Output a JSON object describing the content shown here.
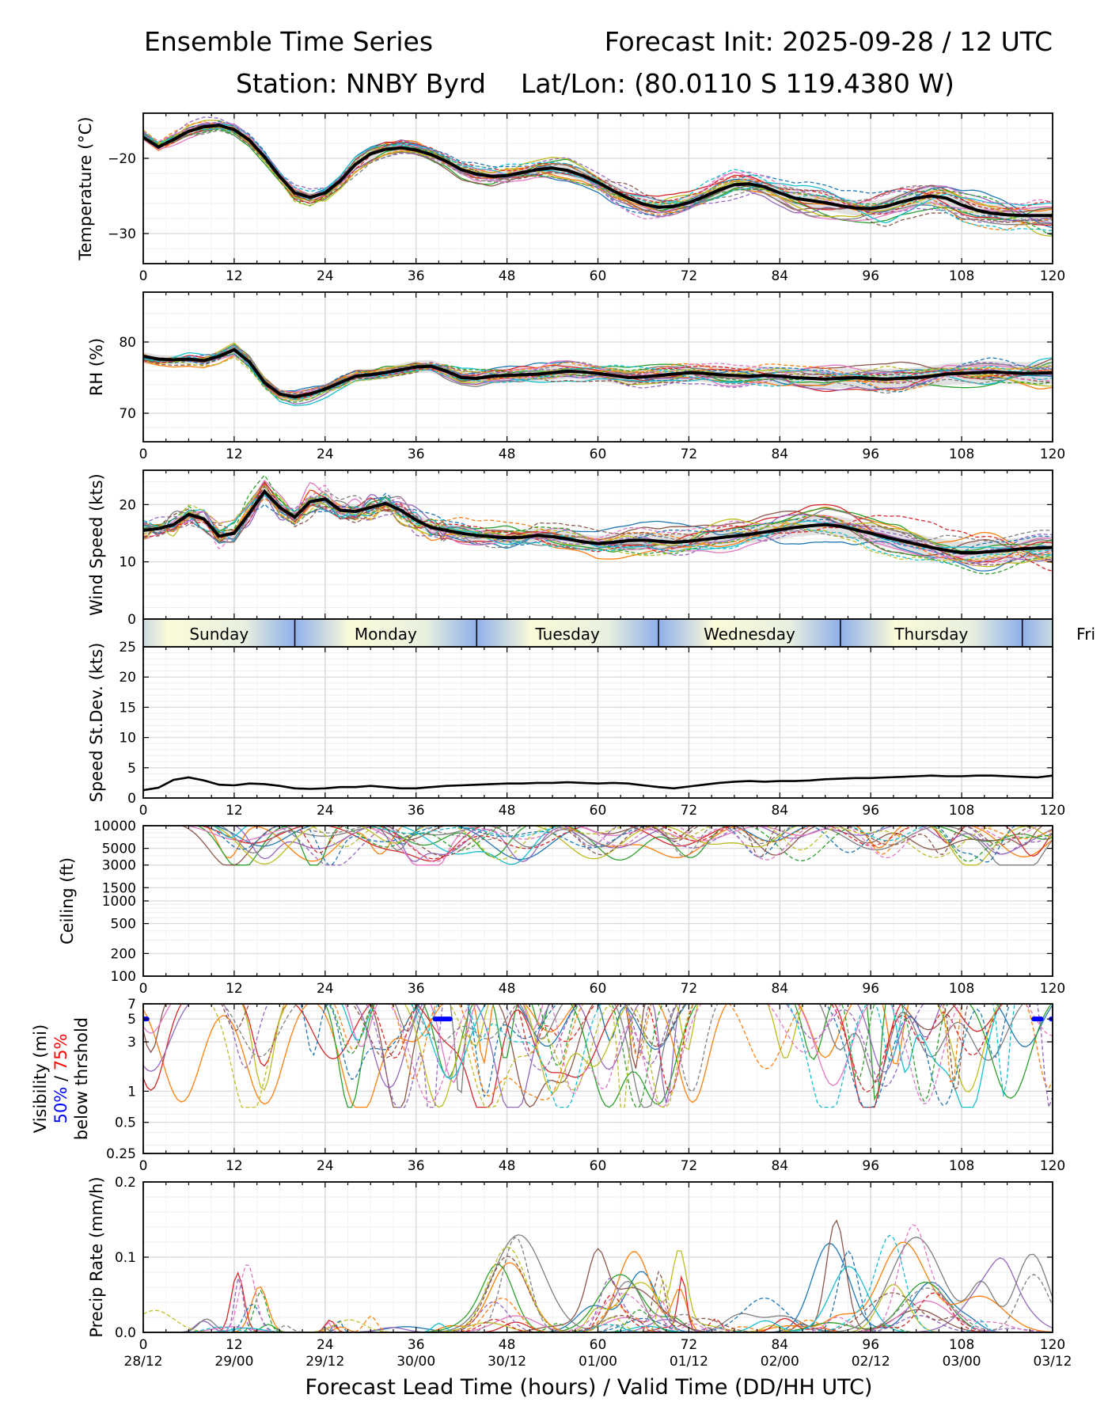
{
  "header": {
    "title_left": "Ensemble Time Series",
    "title_right": "Forecast Init: 2025-09-28 / 12 UTC",
    "station": "Station: NNBY Byrd",
    "latlon": "Lat/Lon: (80.0110 S 119.4380 W)"
  },
  "x_axis": {
    "label": "Forecast Lead Time (hours) / Valid Time (DD/HH UTC)",
    "lead_ticks": [
      "0",
      "12",
      "24",
      "36",
      "48",
      "60",
      "72",
      "84",
      "96",
      "108",
      "120"
    ],
    "valid_ticks": [
      "28/12",
      "29/00",
      "29/12",
      "30/00",
      "30/12",
      "01/00",
      "01/12",
      "02/00",
      "02/12",
      "03/00",
      "03/12"
    ]
  },
  "day_bar": {
    "days": [
      "Sunday",
      "Monday",
      "Tuesday",
      "Wednesday",
      "Thursday",
      "Fri"
    ],
    "day_starts": [
      -4,
      20,
      44,
      68,
      92,
      116
    ]
  },
  "chart_data": [
    {
      "id": "temperature",
      "type": "line",
      "ylabel": "Temperature (°C)",
      "ylim": [
        -34,
        -14
      ],
      "yticks": [
        -30,
        -20
      ],
      "ytick_labels": [
        "−30",
        "−20"
      ],
      "ensemble_mean": {
        "x": [
          0,
          2,
          4,
          6,
          8,
          10,
          12,
          14,
          16,
          18,
          20,
          22,
          24,
          26,
          28,
          30,
          32,
          34,
          36,
          38,
          40,
          42,
          44,
          46,
          48,
          50,
          52,
          54,
          56,
          58,
          60,
          62,
          64,
          66,
          68,
          70,
          72,
          74,
          76,
          78,
          80,
          82,
          84,
          86,
          88,
          90,
          92,
          94,
          96,
          98,
          100,
          102,
          104,
          106,
          108,
          110,
          112,
          114,
          116,
          118,
          120
        ],
        "y": [
          -17.2,
          -18.5,
          -17.5,
          -16.4,
          -15.8,
          -15.6,
          -16.2,
          -17.6,
          -19.8,
          -22.4,
          -24.6,
          -25.2,
          -24.6,
          -23.0,
          -20.8,
          -19.4,
          -18.8,
          -18.6,
          -18.9,
          -19.5,
          -20.4,
          -21.5,
          -22.1,
          -22.4,
          -22.3,
          -21.9,
          -21.5,
          -21.3,
          -21.6,
          -22.3,
          -23.2,
          -24.3,
          -25.3,
          -26.1,
          -26.5,
          -26.4,
          -25.9,
          -25.1,
          -24.2,
          -23.5,
          -23.4,
          -23.8,
          -24.6,
          -25.3,
          -25.6,
          -25.9,
          -26.3,
          -26.6,
          -26.7,
          -26.4,
          -25.8,
          -25.3,
          -25.0,
          -25.3,
          -26.2,
          -26.9,
          -27.3,
          -27.5,
          -27.6,
          -27.6,
          -27.6
        ]
      },
      "spread_halfwidth": 1.2,
      "members": 20
    },
    {
      "id": "rh",
      "type": "line",
      "ylabel": "RH (%)",
      "ylim": [
        66,
        87
      ],
      "yticks": [
        70,
        80
      ],
      "ytick_labels": [
        "70",
        "80"
      ],
      "ensemble_mean": {
        "x": [
          0,
          2,
          4,
          6,
          8,
          10,
          12,
          14,
          16,
          18,
          20,
          22,
          24,
          26,
          28,
          30,
          32,
          34,
          36,
          38,
          40,
          42,
          44,
          46,
          48,
          50,
          52,
          54,
          56,
          58,
          60,
          62,
          64,
          66,
          68,
          70,
          72,
          74,
          76,
          78,
          80,
          82,
          84,
          86,
          88,
          90,
          92,
          94,
          96,
          98,
          100,
          102,
          104,
          106,
          108,
          110,
          112,
          114,
          116,
          118,
          120
        ],
        "y": [
          78.0,
          77.6,
          77.5,
          77.6,
          77.4,
          78.0,
          78.9,
          77.2,
          74.3,
          72.7,
          72.3,
          72.7,
          73.4,
          74.3,
          75.2,
          75.4,
          75.7,
          76.1,
          76.5,
          76.6,
          75.9,
          75.0,
          74.9,
          75.2,
          75.3,
          75.4,
          75.5,
          75.7,
          75.9,
          75.8,
          75.6,
          75.3,
          75.0,
          75.1,
          75.3,
          75.5,
          75.7,
          75.6,
          75.4,
          75.3,
          75.2,
          75.3,
          75.2,
          75.0,
          74.9,
          74.8,
          74.9,
          75.0,
          74.9,
          74.8,
          74.9,
          75.0,
          75.2,
          75.5,
          75.6,
          75.7,
          75.8,
          75.7,
          75.6,
          75.6,
          75.7
        ]
      },
      "spread_halfwidth": 1.6,
      "members": 20
    },
    {
      "id": "wind_speed",
      "type": "line",
      "ylabel": "Wind Speed (kts)",
      "ylim": [
        0,
        26
      ],
      "yticks": [
        0,
        10,
        20
      ],
      "ytick_labels": [
        "0",
        "10",
        "20"
      ],
      "ensemble_mean": {
        "x": [
          0,
          2,
          4,
          6,
          8,
          10,
          12,
          14,
          16,
          18,
          20,
          22,
          24,
          26,
          28,
          30,
          32,
          34,
          36,
          38,
          40,
          42,
          44,
          46,
          48,
          50,
          52,
          54,
          56,
          58,
          60,
          62,
          64,
          66,
          68,
          70,
          72,
          74,
          76,
          78,
          80,
          82,
          84,
          86,
          88,
          90,
          92,
          94,
          96,
          98,
          100,
          102,
          104,
          106,
          108,
          110,
          112,
          114,
          116,
          118,
          120
        ],
        "y": [
          15.5,
          15.8,
          16.5,
          18.3,
          17.5,
          14.5,
          15.0,
          18.5,
          22.3,
          19.5,
          17.8,
          20.5,
          21.0,
          19.0,
          18.8,
          19.5,
          20.2,
          19.0,
          17.3,
          16.0,
          15.5,
          15.0,
          14.6,
          14.4,
          14.2,
          14.3,
          14.6,
          14.4,
          14.0,
          13.5,
          13.2,
          13.4,
          13.7,
          13.8,
          13.6,
          13.4,
          13.6,
          13.9,
          14.2,
          14.5,
          14.8,
          15.2,
          15.6,
          16.0,
          16.3,
          16.5,
          16.2,
          15.6,
          15.0,
          14.3,
          13.7,
          13.1,
          12.5,
          12.0,
          11.6,
          11.6,
          11.8,
          12.0,
          12.3,
          12.4,
          12.5
        ]
      },
      "spread_halfwidth": 2.0,
      "members": 20
    },
    {
      "id": "speed_stdev",
      "type": "line",
      "ylabel": "Speed St.Dev. (kts)",
      "ylim": [
        0,
        25
      ],
      "yticks": [
        0,
        5,
        10,
        15,
        20,
        25
      ],
      "ytick_labels": [
        "0",
        "5",
        "10",
        "15",
        "20",
        "25"
      ],
      "series": [
        {
          "name": "std",
          "x": [
            0,
            2,
            4,
            6,
            8,
            10,
            12,
            14,
            16,
            18,
            20,
            22,
            24,
            26,
            28,
            30,
            32,
            34,
            36,
            38,
            40,
            42,
            44,
            46,
            48,
            50,
            52,
            54,
            56,
            58,
            60,
            62,
            64,
            66,
            68,
            70,
            72,
            74,
            76,
            78,
            80,
            82,
            84,
            86,
            88,
            90,
            92,
            94,
            96,
            98,
            100,
            102,
            104,
            106,
            108,
            110,
            112,
            114,
            116,
            118,
            120
          ],
          "y": [
            1.3,
            1.7,
            3.0,
            3.4,
            2.9,
            2.2,
            2.1,
            2.4,
            2.3,
            2.0,
            1.6,
            1.5,
            1.6,
            1.8,
            1.8,
            2.0,
            1.8,
            1.6,
            1.6,
            1.8,
            2.0,
            2.1,
            2.2,
            2.3,
            2.4,
            2.4,
            2.5,
            2.5,
            2.6,
            2.5,
            2.4,
            2.5,
            2.4,
            2.1,
            1.8,
            1.6,
            1.9,
            2.2,
            2.5,
            2.7,
            2.8,
            2.7,
            2.8,
            2.8,
            2.9,
            3.1,
            3.2,
            3.3,
            3.3,
            3.4,
            3.5,
            3.6,
            3.7,
            3.6,
            3.6,
            3.7,
            3.7,
            3.6,
            3.5,
            3.4,
            3.7
          ]
        }
      ]
    },
    {
      "id": "ceiling",
      "type": "line",
      "yscale": "log",
      "ylabel": "Ceiling (ft)",
      "ylim": [
        100,
        10000
      ],
      "yticks": [
        100,
        200,
        500,
        1000,
        1500,
        3000,
        5000,
        10000
      ],
      "ytick_labels": [
        "100",
        "200",
        "500",
        "1000",
        "1500",
        "3000",
        "5000",
        "10000"
      ],
      "members": 20
    },
    {
      "id": "visibility",
      "type": "line",
      "yscale": "log",
      "ylabel": "Visibility (mi)",
      "ylabel_pct_50": "50%",
      "ylabel_pct_sep": " / ",
      "ylabel_pct_75": "75%",
      "ylabel_sub": "below thrshold",
      "ylim": [
        0.25,
        7
      ],
      "yticks": [
        0.25,
        0.5,
        1,
        3,
        5,
        7
      ],
      "ytick_labels": [
        "0.25",
        "0.5",
        "1",
        "3",
        "5",
        "7"
      ],
      "threshold_marks": [
        {
          "x0": 0,
          "x1": 0.5,
          "y": 5
        },
        {
          "x0": 38.5,
          "x1": 40.5,
          "y": 5
        },
        {
          "x0": 117.5,
          "x1": 118.5,
          "y": 5
        },
        {
          "x0": 119.8,
          "x1": 120,
          "y": 5
        }
      ],
      "members": 20
    },
    {
      "id": "precip",
      "type": "line",
      "ylabel": "Precip Rate (mm/h)",
      "ylim": [
        0,
        0.2
      ],
      "yticks": [
        0.0,
        0.1,
        0.2
      ],
      "ytick_labels": [
        "0.0",
        "0.1",
        "0.2"
      ],
      "members": 20
    }
  ],
  "colors": {
    "members": [
      "#1f77b4",
      "#ff7f0e",
      "#2ca02c",
      "#d62728",
      "#9467bd",
      "#8c564b",
      "#e377c2",
      "#7f7f7f",
      "#bcbd22",
      "#17becf"
    ],
    "mean": "#000000",
    "spread": "#c8c8c8",
    "threshold_50": "#0000ff",
    "threshold_75": "#ff0000"
  }
}
